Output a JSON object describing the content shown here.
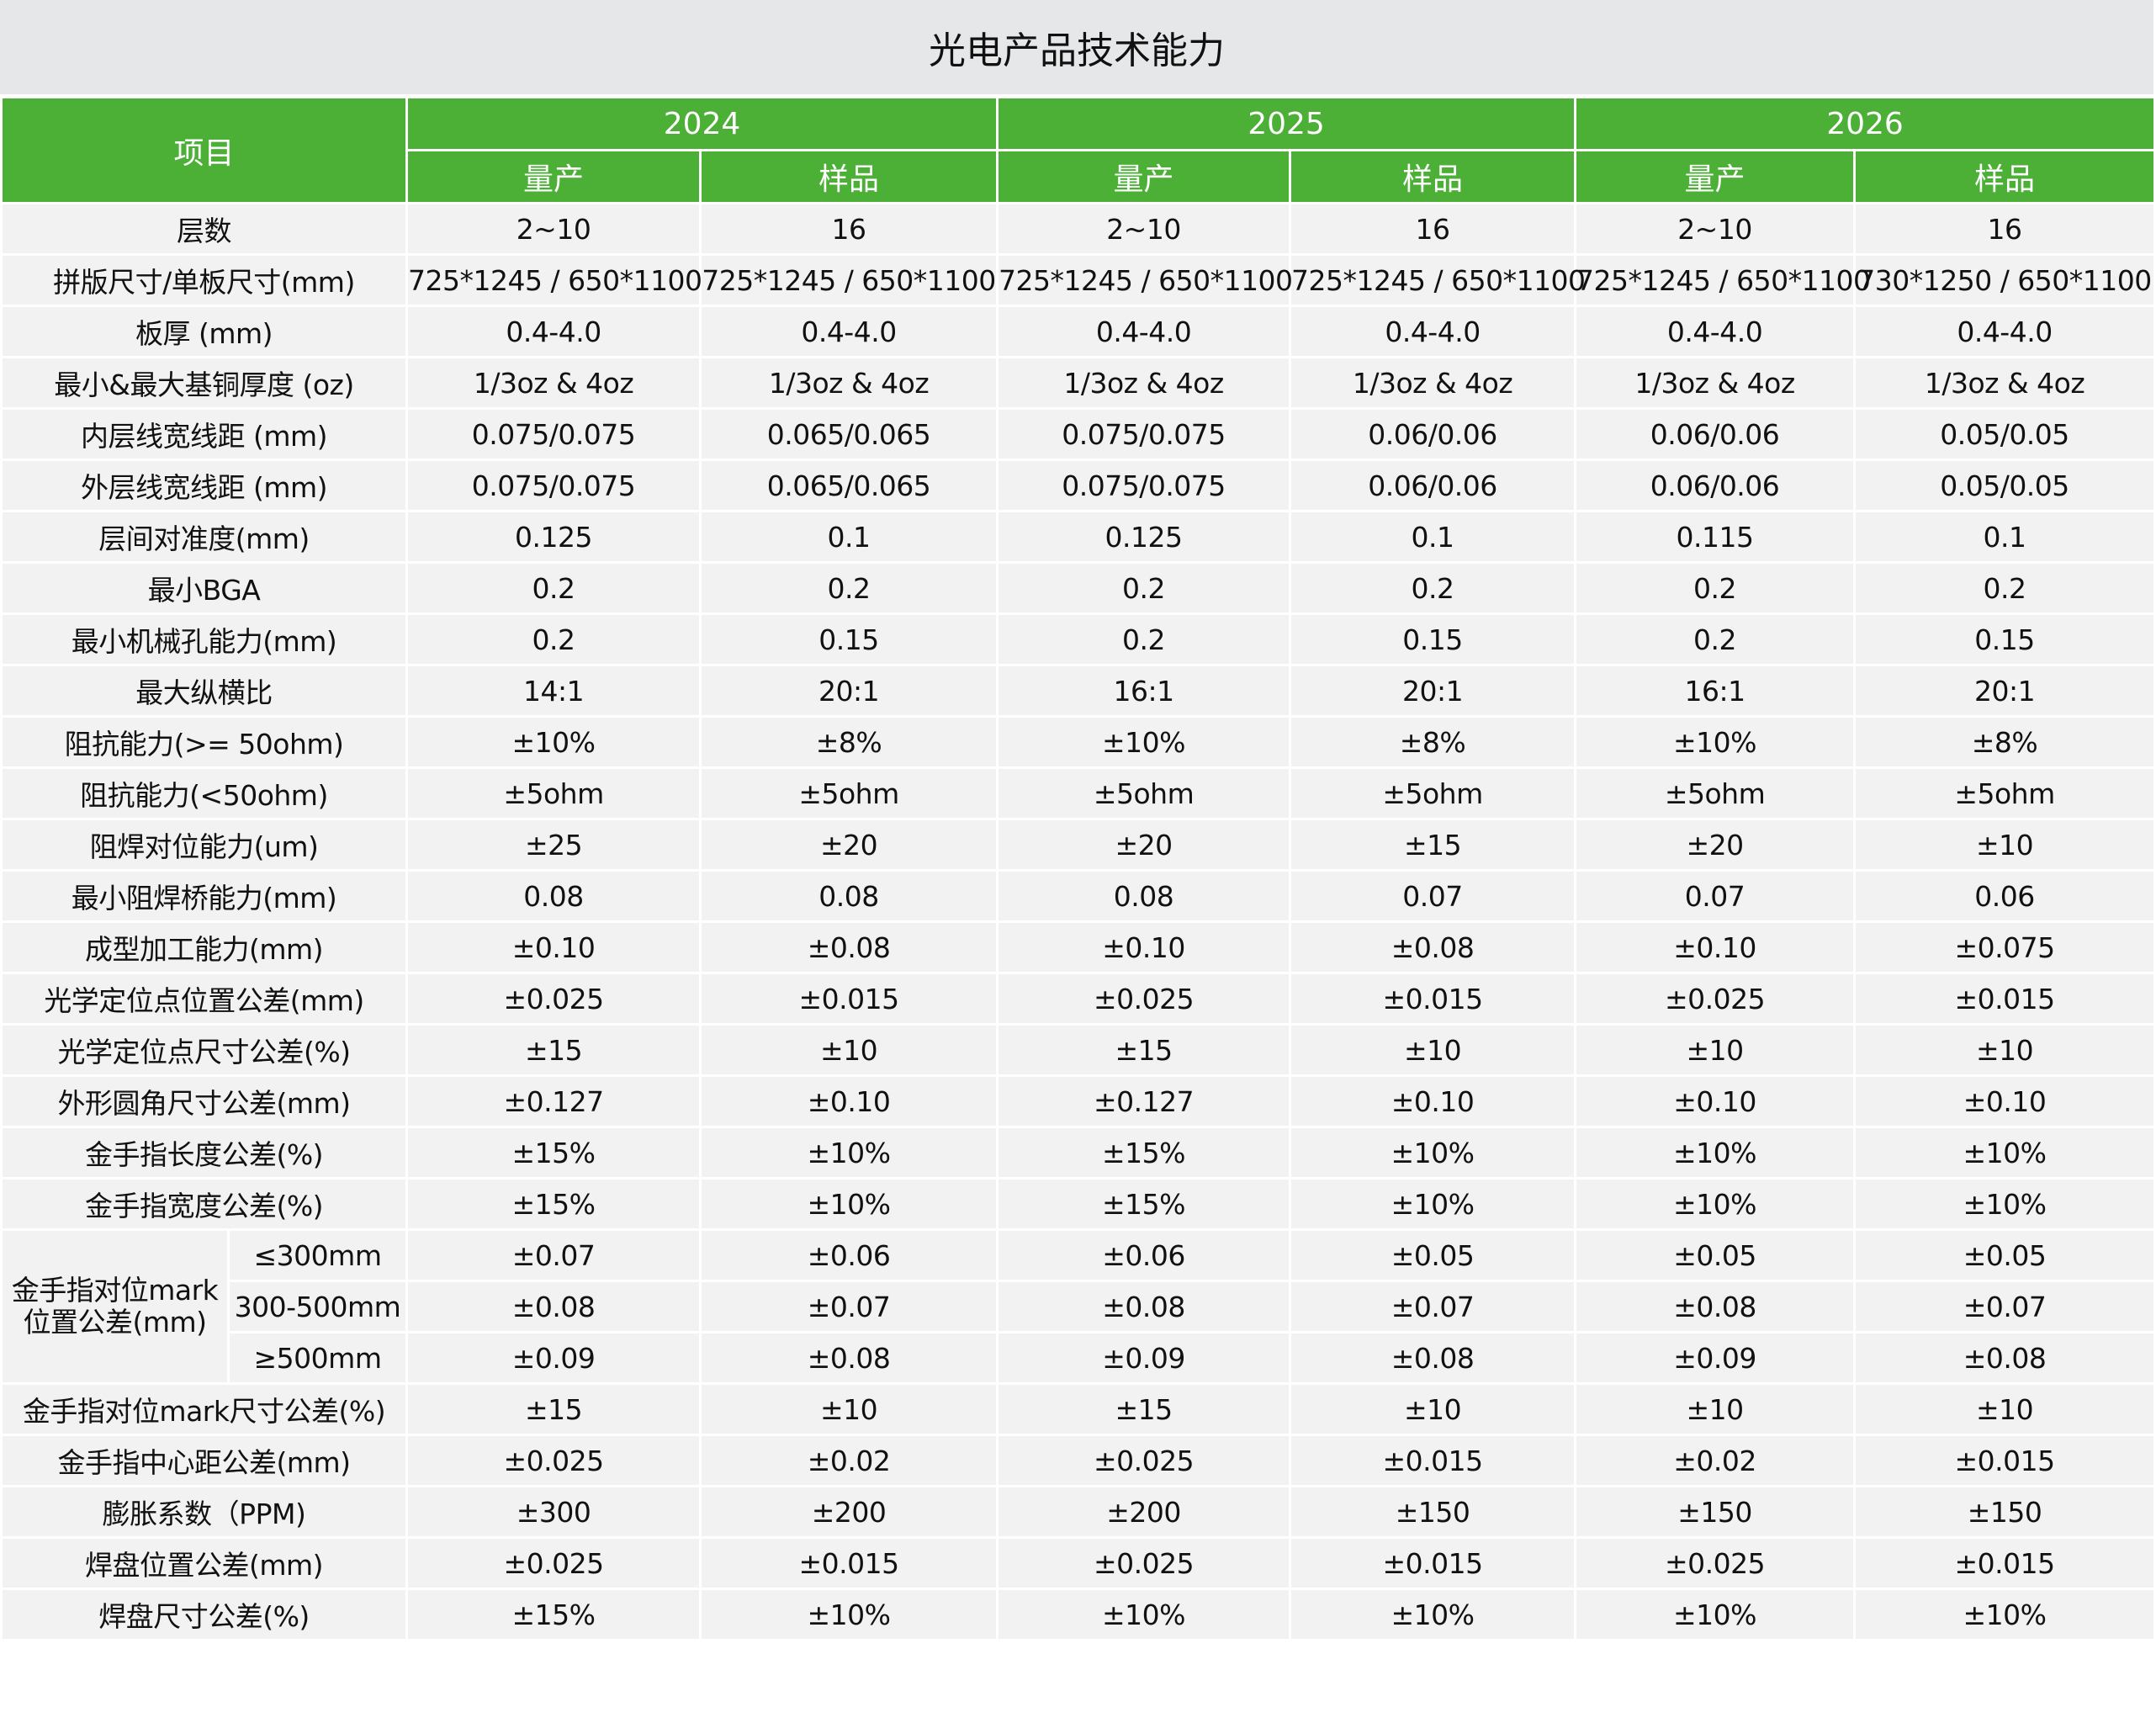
{
  "title": "光电产品技术能力",
  "header": {
    "item": "项目",
    "years": [
      "2024",
      "2025",
      "2026"
    ],
    "sub": [
      "量产",
      "样品",
      "量产",
      "样品",
      "量产",
      "样品"
    ]
  },
  "colors": {
    "header_bg": "#4caf36",
    "title_bg": "#e6e7e8",
    "row_bg": "#f2f2f2"
  },
  "rows_before": [
    {
      "label": "层数",
      "values": [
        "2~10",
        "16",
        "2~10",
        "16",
        "2~10",
        "16"
      ]
    },
    {
      "label": "拼版尺寸/单板尺寸(mm)",
      "values": [
        "725*1245 / 650*1100",
        "725*1245 / 650*1100",
        "725*1245 / 650*1100",
        "725*1245 / 650*1100",
        "725*1245 / 650*1100",
        "730*1250 / 650*1100"
      ]
    },
    {
      "label": "板厚 (mm)",
      "values": [
        "0.4-4.0",
        "0.4-4.0",
        "0.4-4.0",
        "0.4-4.0",
        "0.4-4.0",
        "0.4-4.0"
      ]
    },
    {
      "label": "最小&最大基铜厚度 (oz)",
      "values": [
        "1/3oz & 4oz",
        "1/3oz & 4oz",
        "1/3oz & 4oz",
        "1/3oz & 4oz",
        "1/3oz & 4oz",
        "1/3oz & 4oz"
      ]
    },
    {
      "label": "内层线宽线距 (mm)",
      "values": [
        "0.075/0.075",
        "0.065/0.065",
        "0.075/0.075",
        "0.06/0.06",
        "0.06/0.06",
        "0.05/0.05"
      ]
    },
    {
      "label": "外层线宽线距 (mm)",
      "values": [
        "0.075/0.075",
        "0.065/0.065",
        "0.075/0.075",
        "0.06/0.06",
        "0.06/0.06",
        "0.05/0.05"
      ]
    },
    {
      "label": "层间对准度(mm)",
      "values": [
        "0.125",
        "0.1",
        "0.125",
        "0.1",
        "0.115",
        "0.1"
      ]
    },
    {
      "label": "最小BGA",
      "values": [
        "0.2",
        "0.2",
        "0.2",
        "0.2",
        "0.2",
        "0.2"
      ]
    },
    {
      "label": "最小机械孔能力(mm)",
      "values": [
        "0.2",
        "0.15",
        "0.2",
        "0.15",
        "0.2",
        "0.15"
      ]
    },
    {
      "label": "最大纵横比",
      "values": [
        "14:1",
        "20:1",
        "16:1",
        "20:1",
        "16:1",
        "20:1"
      ]
    },
    {
      "label": "阻抗能力(>= 50ohm)",
      "values": [
        "±10%",
        "±8%",
        "±10%",
        "±8%",
        "±10%",
        "±8%"
      ]
    },
    {
      "label": "阻抗能力(<50ohm)",
      "values": [
        "±5ohm",
        "±5ohm",
        "±5ohm",
        "±5ohm",
        "±5ohm",
        "±5ohm"
      ]
    },
    {
      "label": "阻焊对位能力(um)",
      "values": [
        "±25",
        "±20",
        "±20",
        "±15",
        "±20",
        "±10"
      ]
    },
    {
      "label": "最小阻焊桥能力(mm)",
      "values": [
        "0.08",
        "0.08",
        "0.08",
        "0.07",
        "0.07",
        "0.06"
      ]
    },
    {
      "label": "成型加工能力(mm)",
      "values": [
        "±0.10",
        "±0.08",
        "±0.10",
        "±0.08",
        "±0.10",
        "±0.075"
      ]
    },
    {
      "label": "光学定位点位置公差(mm)",
      "values": [
        "±0.025",
        "±0.015",
        "±0.025",
        "±0.015",
        "±0.025",
        "±0.015"
      ]
    },
    {
      "label": "光学定位点尺寸公差(%)",
      "values": [
        "±15",
        "±10",
        "±15",
        "±10",
        "±10",
        "±10"
      ]
    },
    {
      "label": "外形圆角尺寸公差(mm)",
      "values": [
        "±0.127",
        "±0.10",
        "±0.127",
        "±0.10",
        "±0.10",
        "±0.10"
      ]
    },
    {
      "label": "金手指长度公差(%)",
      "values": [
        "±15%",
        "±10%",
        "±15%",
        "±10%",
        "±10%",
        "±10%"
      ]
    },
    {
      "label": "金手指宽度公差(%)",
      "values": [
        "±15%",
        "±10%",
        "±15%",
        "±10%",
        "±10%",
        "±10%"
      ]
    }
  ],
  "group": {
    "label": "金手指对位mark位置公差(mm)",
    "rows": [
      {
        "label": "≤300mm",
        "values": [
          "±0.07",
          "±0.06",
          "±0.06",
          "±0.05",
          "±0.05",
          "±0.05"
        ]
      },
      {
        "label": "300-500mm",
        "values": [
          "±0.08",
          "±0.07",
          "±0.08",
          "±0.07",
          "±0.08",
          "±0.07"
        ]
      },
      {
        "label": "≥500mm",
        "values": [
          "±0.09",
          "±0.08",
          "±0.09",
          "±0.08",
          "±0.09",
          "±0.08"
        ]
      }
    ]
  },
  "rows_after": [
    {
      "label": "金手指对位mark尺寸公差(%)",
      "values": [
        "±15",
        "±10",
        "±15",
        "±10",
        "±10",
        "±10"
      ]
    },
    {
      "label": "金手指中心距公差(mm)",
      "values": [
        "±0.025",
        "±0.02",
        "±0.025",
        "±0.015",
        "±0.02",
        "±0.015"
      ]
    },
    {
      "label": "膨胀系数（PPM)",
      "values": [
        "±300",
        "±200",
        "±200",
        "±150",
        "±150",
        "±150"
      ]
    },
    {
      "label": "焊盘位置公差(mm)",
      "values": [
        "±0.025",
        "±0.015",
        "±0.025",
        "±0.015",
        "±0.025",
        "±0.015"
      ]
    },
    {
      "label": "焊盘尺寸公差(%)",
      "values": [
        "±15%",
        "±10%",
        "±10%",
        "±10%",
        "±10%",
        "±10%"
      ]
    }
  ]
}
